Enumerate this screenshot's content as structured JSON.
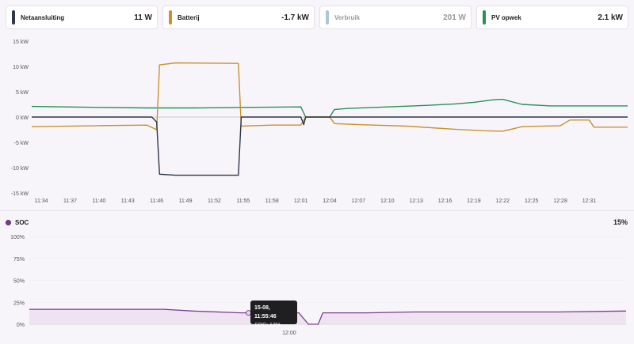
{
  "cards": [
    {
      "name": "Netaansluiting",
      "value": "11 W",
      "color": "#2f3644",
      "dim": false
    },
    {
      "name": "Batterij",
      "value": "-1.7 kW",
      "color": "#c8922e",
      "dim": false
    },
    {
      "name": "Verbruik",
      "value": "201 W",
      "color": "#a9c8d6",
      "dim": true
    },
    {
      "name": "PV opwek",
      "value": "2.1 kW",
      "color": "#279156",
      "dim": false
    }
  ],
  "chart_data": [
    {
      "type": "line",
      "y_ticks": [
        "15 kW",
        "10 kW",
        "5 kW",
        "0 kW",
        "-5 kW",
        "-10 kW",
        "-15 kW"
      ],
      "x_ticks": [
        "11:34",
        "11:37",
        "11:40",
        "11:43",
        "11:46",
        "11:49",
        "11:52",
        "11:55",
        "11:58",
        "12:01",
        "12:04",
        "12:07",
        "12:10",
        "12:13",
        "12:16",
        "12:19",
        "12:22",
        "12:25",
        "12:28",
        "12:31"
      ],
      "ylim": [
        -15,
        15
      ],
      "x_minutes_range": [
        "11:33",
        "12:35"
      ],
      "series": [
        {
          "name": "PV opwek",
          "color": "#279156",
          "points": [
            [
              "11:33",
              2.1
            ],
            [
              "11:40",
              1.9
            ],
            [
              "11:45",
              1.8
            ],
            [
              "11:50",
              1.8
            ],
            [
              "11:55",
              1.9
            ],
            [
              "12:01",
              2.0
            ],
            [
              "12:01.5",
              0.0
            ],
            [
              "12:04",
              0.0
            ],
            [
              "12:04.5",
              1.5
            ],
            [
              "12:06",
              1.7
            ],
            [
              "12:10",
              2.0
            ],
            [
              "12:14",
              2.3
            ],
            [
              "12:17",
              2.6
            ],
            [
              "12:19",
              2.9
            ],
            [
              "12:21",
              3.4
            ],
            [
              "12:22",
              3.5
            ],
            [
              "12:24",
              2.5
            ],
            [
              "12:27",
              2.2
            ],
            [
              "12:30",
              2.2
            ],
            [
              "12:35",
              2.2
            ]
          ]
        },
        {
          "name": "Batterij",
          "color": "#c8922e",
          "points": [
            [
              "11:33",
              -1.9
            ],
            [
              "11:40",
              -1.7
            ],
            [
              "11:45",
              -1.6
            ],
            [
              "11:46",
              -2.5
            ],
            [
              "11:46.3",
              10.3
            ],
            [
              "11:48",
              10.7
            ],
            [
              "11:54.5",
              10.6
            ],
            [
              "11:54.8",
              -1.8
            ],
            [
              "11:58",
              -1.6
            ],
            [
              "12:01",
              -1.6
            ],
            [
              "12:01.5",
              0.0
            ],
            [
              "12:04",
              0.0
            ],
            [
              "12:04.5",
              -1.3
            ],
            [
              "12:07",
              -1.5
            ],
            [
              "12:12",
              -1.8
            ],
            [
              "12:17",
              -2.4
            ],
            [
              "12:20",
              -2.7
            ],
            [
              "12:22",
              -2.8
            ],
            [
              "12:24",
              -1.9
            ],
            [
              "12:28",
              -1.7
            ],
            [
              "12:29",
              -0.6
            ],
            [
              "12:31",
              -0.6
            ],
            [
              "12:31.5",
              -2.0
            ],
            [
              "12:35",
              -2.0
            ]
          ]
        },
        {
          "name": "Netaansluiting",
          "color": "#2f3644",
          "points": [
            [
              "11:33",
              0.0
            ],
            [
              "11:45.5",
              0.0
            ],
            [
              "11:46",
              -1.0
            ],
            [
              "11:46.3",
              -11.3
            ],
            [
              "11:48",
              -11.5
            ],
            [
              "11:54.5",
              -11.5
            ],
            [
              "11:54.8",
              0.0
            ],
            [
              "12:01",
              0.0
            ],
            [
              "12:01.3",
              -1.5
            ],
            [
              "12:01.5",
              0.0
            ],
            [
              "12:35",
              0.0
            ]
          ]
        }
      ]
    },
    {
      "type": "area",
      "y_ticks": [
        "100%",
        "75%",
        "50%",
        "25%",
        "0%"
      ],
      "x_ticks": [
        "12:00"
      ],
      "ylim": [
        0,
        100
      ],
      "series": [
        {
          "name": "SOC",
          "color": "#7b3f8c",
          "points": [
            [
              "11:33",
              17
            ],
            [
              "11:47",
              17
            ],
            [
              "11:50",
              15
            ],
            [
              "11:55",
              13
            ],
            [
              "11:59",
              13
            ],
            [
              "12:01",
              13
            ],
            [
              "12:02",
              0
            ],
            [
              "12:03",
              0
            ],
            [
              "12:03.5",
              13
            ],
            [
              "12:08",
              13
            ],
            [
              "12:13",
              14
            ],
            [
              "12:28",
              14
            ],
            [
              "12:35",
              15
            ]
          ]
        }
      ]
    }
  ],
  "soc": {
    "label": "SOC",
    "value": "15%"
  },
  "tooltip": {
    "time": "15-08, 11:55:46",
    "value": "SOC: 13%"
  }
}
